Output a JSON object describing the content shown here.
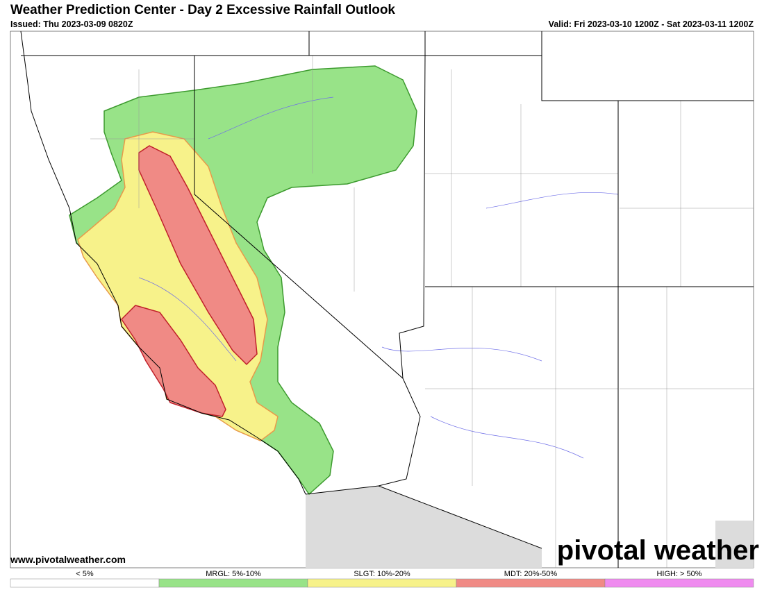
{
  "header": {
    "title": "Weather Prediction Center - Day 2 Excessive Rainfall Outlook",
    "issued": "Issued: Thu 2023-03-09 0820Z",
    "valid": "Valid: Fri 2023-03-10 1200Z - Sat 2023-03-11 1200Z"
  },
  "footer": {
    "website": "www.pivotalweather.com",
    "logo": "pivotal weather"
  },
  "legend": [
    {
      "label": "< 5%",
      "color": "#ffffff"
    },
    {
      "label": "MRGL: 5%-10%",
      "color": "#98e388"
    },
    {
      "label": "SLGT: 10%-20%",
      "color": "#f7f28a"
    },
    {
      "label": "MDT: 20%-50%",
      "color": "#f08a85"
    },
    {
      "label": "HIGH: > 50%",
      "color": "#ef8bef"
    }
  ]
}
